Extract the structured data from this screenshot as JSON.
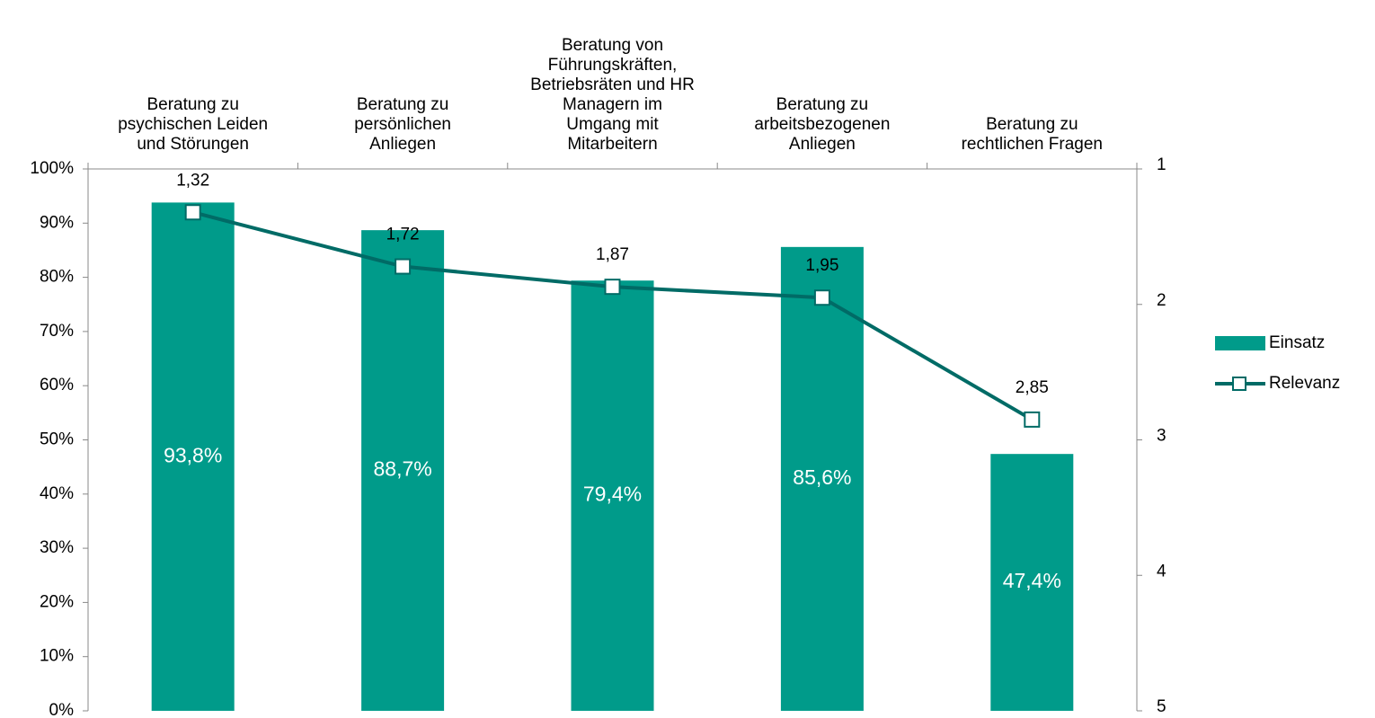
{
  "chart_data": {
    "type": "bar",
    "categories": [
      "Beratung zu\npsychischen Leiden\nund Störungen",
      "Beratung zu\npersönlichen\nAnliegen",
      "Beratung von\nFührungskräften,\nBetriebsräten und HR\nManagern im\nUmgang mit\nMitarbeitern",
      "Beratung zu\narbeitsbezogenen\nAnliegen",
      "Beratung zu\nrechtlichen Fragen"
    ],
    "series": [
      {
        "name": "Einsatz",
        "type": "bar",
        "color": "#009b8a",
        "values": [
          93.8,
          88.7,
          79.4,
          85.6,
          47.4
        ],
        "value_labels": [
          "93,8%",
          "88,7%",
          "79,4%",
          "85,6%",
          "47,4%"
        ]
      },
      {
        "name": "Relevanz",
        "type": "line",
        "axis": "y2",
        "color": "#006b66",
        "values": [
          1.32,
          1.72,
          1.87,
          1.95,
          2.85
        ],
        "value_labels": [
          "1,32",
          "1,72",
          "1,87",
          "1,95",
          "2,85"
        ]
      }
    ],
    "ylim": [
      0,
      100
    ],
    "yticks": [
      {
        "value": 0,
        "label": "0%"
      },
      {
        "value": 10,
        "label": "10%"
      },
      {
        "value": 20,
        "label": "20%"
      },
      {
        "value": 30,
        "label": "30%"
      },
      {
        "value": 40,
        "label": "40%"
      },
      {
        "value": 50,
        "label": "50%"
      },
      {
        "value": 60,
        "label": "60%"
      },
      {
        "value": 70,
        "label": "70%"
      },
      {
        "value": 80,
        "label": "80%"
      },
      {
        "value": 90,
        "label": "90%"
      },
      {
        "value": 100,
        "label": "100%"
      }
    ],
    "y2lim": [
      5,
      1
    ],
    "y2ticks": [
      1,
      2,
      3,
      4,
      5
    ],
    "legend": "right"
  }
}
